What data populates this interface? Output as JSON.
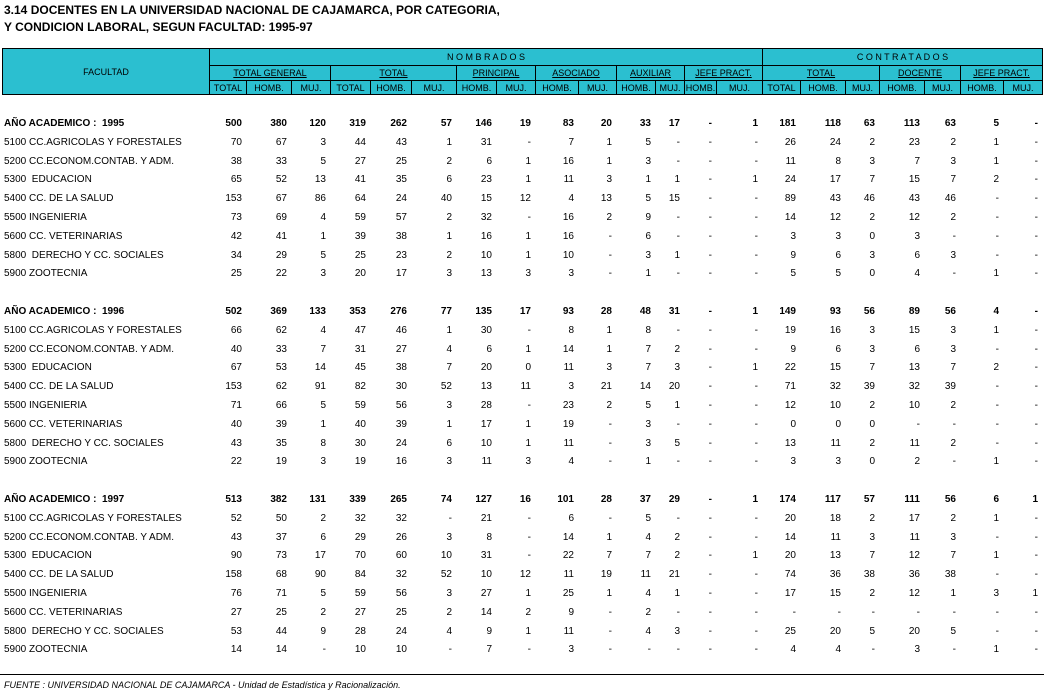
{
  "title": {
    "line1": "3.14  DOCENTES EN LA UNIVERSIDAD NACIONAL DE CAJAMARCA, POR CATEGORIA,",
    "line2": "Y CONDICION LABORAL, SEGUN FACULTAD:  1995-97"
  },
  "header": {
    "facultad": "FACULTAD",
    "nombrados": "N  O  M  B  R  A  D  O  S",
    "contratados": "C  O  N  T  R  A  T  A  D  O  S",
    "groups": [
      "TOTAL  GENERAL",
      "TOTAL",
      "PRINCIPAL",
      "ASOCIADO",
      "AUXILIAR",
      "JEFE  PRACT.",
      "TOTAL",
      "DOCENTE",
      "JEFE  PRACT."
    ],
    "sub": [
      "TOTAL",
      "HOMB.",
      "MUJ.",
      "TOTAL",
      "HOMB.",
      "MUJ.",
      "HOMB.",
      "MUJ.",
      "HOMB.",
      "MUJ.",
      "HOMB.",
      "MUJ.",
      "HOMB.",
      "MUJ.",
      "TOTAL",
      "HOMB.",
      "MUJ.",
      "HOMB.",
      "MUJ.",
      "HOMB.",
      "MUJ."
    ]
  },
  "sections": [
    {
      "label": "AÑO ACADEMICO :  1995",
      "totals": [
        "500",
        "380",
        "120",
        "319",
        "262",
        "57",
        "146",
        "19",
        "83",
        "20",
        "33",
        "17",
        "-",
        "1",
        "181",
        "118",
        "63",
        "113",
        "63",
        "5",
        "-"
      ],
      "rows": [
        {
          "label": "5100 CC.AGRICOLAS Y FORESTALES",
          "values": [
            "70",
            "67",
            "3",
            "44",
            "43",
            "1",
            "31",
            "-",
            "7",
            "1",
            "5",
            "-",
            "-",
            "-",
            "26",
            "24",
            "2",
            "23",
            "2",
            "1",
            "-"
          ]
        },
        {
          "label": "5200 CC.ECONOM.CONTAB. Y ADM.",
          "values": [
            "38",
            "33",
            "5",
            "27",
            "25",
            "2",
            "6",
            "1",
            "16",
            "1",
            "3",
            "-",
            "-",
            "-",
            "11",
            "8",
            "3",
            "7",
            "3",
            "1",
            "-"
          ]
        },
        {
          "label": "5300  EDUCACION",
          "values": [
            "65",
            "52",
            "13",
            "41",
            "35",
            "6",
            "23",
            "1",
            "11",
            "3",
            "1",
            "1",
            "-",
            "1",
            "24",
            "17",
            "7",
            "15",
            "7",
            "2",
            "-"
          ]
        },
        {
          "label": "5400 CC. DE LA SALUD",
          "values": [
            "153",
            "67",
            "86",
            "64",
            "24",
            "40",
            "15",
            "12",
            "4",
            "13",
            "5",
            "15",
            "-",
            "-",
            "89",
            "43",
            "46",
            "43",
            "46",
            "-",
            "-"
          ]
        },
        {
          "label": "5500 INGENIERIA",
          "values": [
            "73",
            "69",
            "4",
            "59",
            "57",
            "2",
            "32",
            "-",
            "16",
            "2",
            "9",
            "-",
            "-",
            "-",
            "14",
            "12",
            "2",
            "12",
            "2",
            "-",
            "-"
          ]
        },
        {
          "label": "5600 CC. VETERINARIAS",
          "values": [
            "42",
            "41",
            "1",
            "39",
            "38",
            "1",
            "16",
            "1",
            "16",
            "-",
            "6",
            "-",
            "-",
            "-",
            "3",
            "3",
            "0",
            "3",
            "-",
            "-",
            "-"
          ]
        },
        {
          "label": "5800  DERECHO Y CC. SOCIALES",
          "values": [
            "34",
            "29",
            "5",
            "25",
            "23",
            "2",
            "10",
            "1",
            "10",
            "-",
            "3",
            "1",
            "-",
            "-",
            "9",
            "6",
            "3",
            "6",
            "3",
            "-",
            "-"
          ]
        },
        {
          "label": "5900 ZOOTECNIA",
          "values": [
            "25",
            "22",
            "3",
            "20",
            "17",
            "3",
            "13",
            "3",
            "3",
            "-",
            "1",
            "-",
            "-",
            "-",
            "5",
            "5",
            "0",
            "4",
            "-",
            "1",
            "-"
          ]
        }
      ]
    },
    {
      "label": "AÑO ACADEMICO :  1996",
      "totals": [
        "502",
        "369",
        "133",
        "353",
        "276",
        "77",
        "135",
        "17",
        "93",
        "28",
        "48",
        "31",
        "-",
        "1",
        "149",
        "93",
        "56",
        "89",
        "56",
        "4",
        "-"
      ],
      "rows": [
        {
          "label": "5100 CC.AGRICOLAS Y FORESTALES",
          "values": [
            "66",
            "62",
            "4",
            "47",
            "46",
            "1",
            "30",
            "-",
            "8",
            "1",
            "8",
            "-",
            "-",
            "-",
            "19",
            "16",
            "3",
            "15",
            "3",
            "1",
            "-"
          ]
        },
        {
          "label": "5200 CC.ECONOM.CONTAB. Y ADM.",
          "values": [
            "40",
            "33",
            "7",
            "31",
            "27",
            "4",
            "6",
            "1",
            "14",
            "1",
            "7",
            "2",
            "-",
            "-",
            "9",
            "6",
            "3",
            "6",
            "3",
            "-",
            "-"
          ]
        },
        {
          "label": "5300  EDUCACION",
          "values": [
            "67",
            "53",
            "14",
            "45",
            "38",
            "7",
            "20",
            "0",
            "11",
            "3",
            "7",
            "3",
            "-",
            "1",
            "22",
            "15",
            "7",
            "13",
            "7",
            "2",
            "-"
          ]
        },
        {
          "label": "5400 CC. DE LA SALUD",
          "values": [
            "153",
            "62",
            "91",
            "82",
            "30",
            "52",
            "13",
            "11",
            "3",
            "21",
            "14",
            "20",
            "-",
            "-",
            "71",
            "32",
            "39",
            "32",
            "39",
            "-",
            "-"
          ]
        },
        {
          "label": "5500 INGENIERIA",
          "values": [
            "71",
            "66",
            "5",
            "59",
            "56",
            "3",
            "28",
            "-",
            "23",
            "2",
            "5",
            "1",
            "-",
            "-",
            "12",
            "10",
            "2",
            "10",
            "2",
            "-",
            "-"
          ]
        },
        {
          "label": "5600 CC. VETERINARIAS",
          "values": [
            "40",
            "39",
            "1",
            "40",
            "39",
            "1",
            "17",
            "1",
            "19",
            "-",
            "3",
            "-",
            "-",
            "-",
            "0",
            "0",
            "0",
            "-",
            "-",
            "-",
            "-"
          ]
        },
        {
          "label": "5800  DERECHO Y CC. SOCIALES",
          "values": [
            "43",
            "35",
            "8",
            "30",
            "24",
            "6",
            "10",
            "1",
            "11",
            "-",
            "3",
            "5",
            "-",
            "-",
            "13",
            "11",
            "2",
            "11",
            "2",
            "-",
            "-"
          ]
        },
        {
          "label": "5900 ZOOTECNIA",
          "values": [
            "22",
            "19",
            "3",
            "19",
            "16",
            "3",
            "11",
            "3",
            "4",
            "-",
            "1",
            "-",
            "-",
            "-",
            "3",
            "3",
            "0",
            "2",
            "-",
            "1",
            "-"
          ]
        }
      ]
    },
    {
      "label": "AÑO ACADEMICO :  1997",
      "totals": [
        "513",
        "382",
        "131",
        "339",
        "265",
        "74",
        "127",
        "16",
        "101",
        "28",
        "37",
        "29",
        "-",
        "1",
        "174",
        "117",
        "57",
        "111",
        "56",
        "6",
        "1"
      ],
      "rows": [
        {
          "label": "5100 CC.AGRICOLAS Y FORESTALES",
          "values": [
            "52",
            "50",
            "2",
            "32",
            "32",
            "-",
            "21",
            "-",
            "6",
            "-",
            "5",
            "-",
            "-",
            "-",
            "20",
            "18",
            "2",
            "17",
            "2",
            "1",
            "-"
          ]
        },
        {
          "label": "5200 CC.ECONOM.CONTAB. Y ADM.",
          "values": [
            "43",
            "37",
            "6",
            "29",
            "26",
            "3",
            "8",
            "-",
            "14",
            "1",
            "4",
            "2",
            "-",
            "-",
            "14",
            "11",
            "3",
            "11",
            "3",
            "-",
            "-"
          ]
        },
        {
          "label": "5300  EDUCACION",
          "values": [
            "90",
            "73",
            "17",
            "70",
            "60",
            "10",
            "31",
            "-",
            "22",
            "7",
            "7",
            "2",
            "-",
            "1",
            "20",
            "13",
            "7",
            "12",
            "7",
            "1",
            "-"
          ]
        },
        {
          "label": "5400 CC. DE LA SALUD",
          "values": [
            "158",
            "68",
            "90",
            "84",
            "32",
            "52",
            "10",
            "12",
            "11",
            "19",
            "11",
            "21",
            "-",
            "-",
            "74",
            "36",
            "38",
            "36",
            "38",
            "-",
            "-"
          ]
        },
        {
          "label": "5500 INGENIERIA",
          "values": [
            "76",
            "71",
            "5",
            "59",
            "56",
            "3",
            "27",
            "1",
            "25",
            "1",
            "4",
            "1",
            "-",
            "-",
            "17",
            "15",
            "2",
            "12",
            "1",
            "3",
            "1"
          ]
        },
        {
          "label": "5600 CC. VETERINARIAS",
          "values": [
            "27",
            "25",
            "2",
            "27",
            "25",
            "2",
            "14",
            "2",
            "9",
            "-",
            "2",
            "-",
            "-",
            "-",
            "-",
            "-",
            "-",
            "-",
            "-",
            "-",
            "-"
          ]
        },
        {
          "label": "5800  DERECHO Y CC. SOCIALES",
          "values": [
            "53",
            "44",
            "9",
            "28",
            "24",
            "4",
            "9",
            "1",
            "11",
            "-",
            "4",
            "3",
            "-",
            "-",
            "25",
            "20",
            "5",
            "20",
            "5",
            "-",
            "-"
          ]
        },
        {
          "label": "5900 ZOOTECNIA",
          "values": [
            "14",
            "14",
            "-",
            "10",
            "10",
            "-",
            "7",
            "-",
            "3",
            "-",
            "-",
            "-",
            "-",
            "-",
            "4",
            "4",
            "-",
            "3",
            "-",
            "1",
            "-"
          ]
        }
      ]
    }
  ],
  "footer": "FUENTE :  UNIVERSIDAD NACIONAL DE CAJAMARCA - Unidad de Estadística y Racionalización."
}
